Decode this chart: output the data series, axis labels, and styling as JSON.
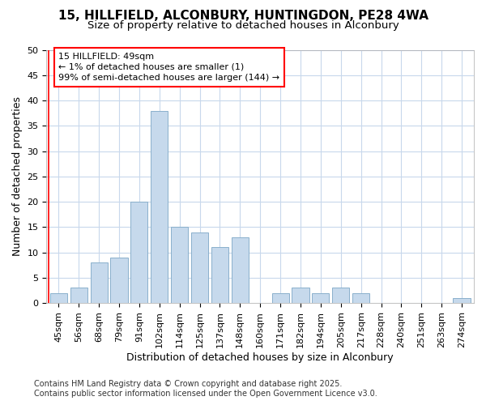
{
  "title_line1": "15, HILLFIELD, ALCONBURY, HUNTINGDON, PE28 4WA",
  "title_line2": "Size of property relative to detached houses in Alconbury",
  "xlabel": "Distribution of detached houses by size in Alconbury",
  "ylabel": "Number of detached properties",
  "categories": [
    "45sqm",
    "56sqm",
    "68sqm",
    "79sqm",
    "91sqm",
    "102sqm",
    "114sqm",
    "125sqm",
    "137sqm",
    "148sqm",
    "160sqm",
    "171sqm",
    "182sqm",
    "194sqm",
    "205sqm",
    "217sqm",
    "228sqm",
    "240sqm",
    "251sqm",
    "263sqm",
    "274sqm"
  ],
  "values": [
    2,
    3,
    8,
    9,
    20,
    38,
    15,
    14,
    11,
    13,
    0,
    2,
    3,
    2,
    3,
    2,
    0,
    0,
    0,
    0,
    1
  ],
  "bar_color": "#c6d9ec",
  "bar_edge_color": "#8ab0cc",
  "annotation_line1": "15 HILLFIELD: 49sqm",
  "annotation_line2": "← 1% of detached houses are smaller (1)",
  "annotation_line3": "99% of semi-detached houses are larger (144) →",
  "ylim": [
    0,
    50
  ],
  "yticks": [
    0,
    5,
    10,
    15,
    20,
    25,
    30,
    35,
    40,
    45,
    50
  ],
  "background_color": "#ffffff",
  "plot_background_color": "#ffffff",
  "grid_color": "#c8d8ec",
  "title_fontsize": 11,
  "subtitle_fontsize": 9.5,
  "axis_label_fontsize": 9,
  "tick_fontsize": 8,
  "annotation_fontsize": 8,
  "footer_fontsize": 7,
  "footer_line1": "Contains HM Land Registry data © Crown copyright and database right 2025.",
  "footer_line2": "Contains public sector information licensed under the Open Government Licence v3.0."
}
